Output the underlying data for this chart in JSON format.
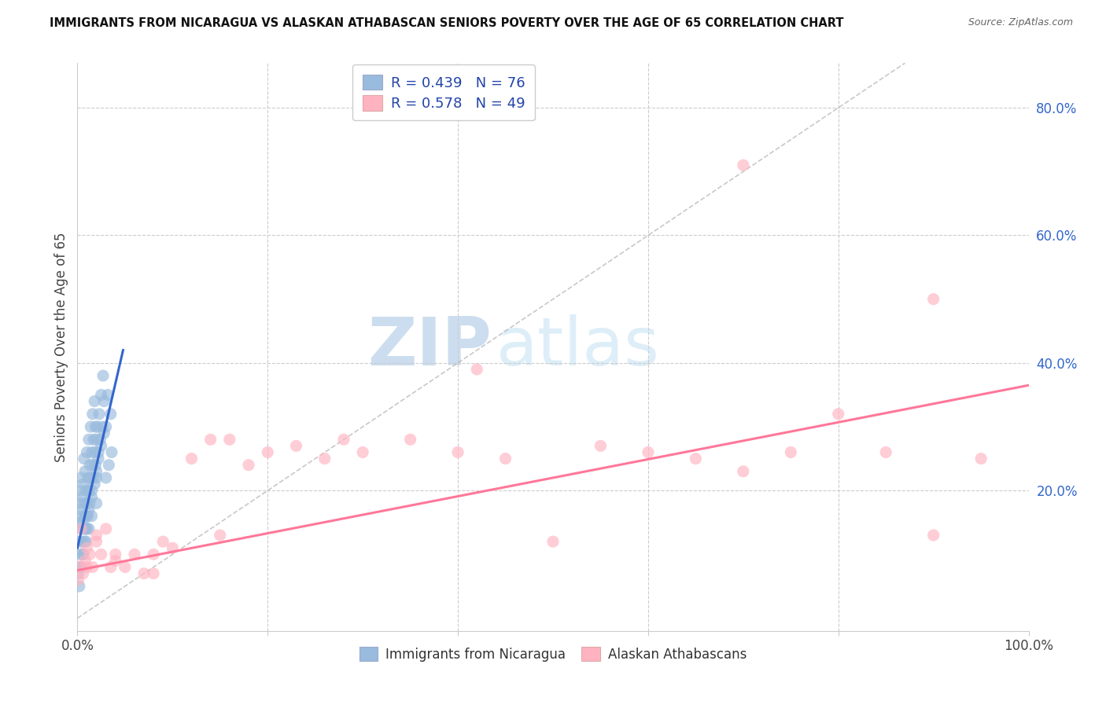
{
  "title": "IMMIGRANTS FROM NICARAGUA VS ALASKAN ATHABASCAN SENIORS POVERTY OVER THE AGE OF 65 CORRELATION CHART",
  "source": "Source: ZipAtlas.com",
  "ylabel": "Seniors Poverty Over the Age of 65",
  "xlim": [
    0,
    1.0
  ],
  "ylim": [
    -0.02,
    0.87
  ],
  "legend_label1": "R = 0.439   N = 76",
  "legend_label2": "R = 0.578   N = 49",
  "color_blue": "#99BBDD",
  "color_pink": "#FFB3C1",
  "color_blue_line": "#3366CC",
  "color_pink_line": "#FF7799",
  "color_diag": "#BBBBBB",
  "blue_scatter_x": [
    0.001,
    0.002,
    0.002,
    0.003,
    0.003,
    0.004,
    0.004,
    0.005,
    0.005,
    0.006,
    0.006,
    0.007,
    0.007,
    0.008,
    0.008,
    0.009,
    0.009,
    0.01,
    0.01,
    0.011,
    0.011,
    0.012,
    0.012,
    0.013,
    0.013,
    0.014,
    0.014,
    0.015,
    0.015,
    0.016,
    0.016,
    0.017,
    0.017,
    0.018,
    0.018,
    0.019,
    0.019,
    0.02,
    0.02,
    0.021,
    0.022,
    0.023,
    0.024,
    0.025,
    0.026,
    0.027,
    0.028,
    0.03,
    0.032,
    0.035,
    0.001,
    0.002,
    0.003,
    0.004,
    0.005,
    0.006,
    0.007,
    0.008,
    0.009,
    0.01,
    0.012,
    0.015,
    0.018,
    0.02,
    0.022,
    0.025,
    0.028,
    0.03,
    0.033,
    0.036,
    0.003,
    0.006,
    0.009,
    0.012,
    0.015,
    0.02
  ],
  "blue_scatter_y": [
    0.15,
    0.12,
    0.18,
    0.16,
    0.2,
    0.17,
    0.22,
    0.14,
    0.19,
    0.15,
    0.21,
    0.18,
    0.25,
    0.16,
    0.23,
    0.14,
    0.2,
    0.18,
    0.26,
    0.22,
    0.16,
    0.2,
    0.28,
    0.24,
    0.18,
    0.22,
    0.3,
    0.26,
    0.2,
    0.24,
    0.32,
    0.28,
    0.22,
    0.26,
    0.34,
    0.3,
    0.24,
    0.28,
    0.22,
    0.3,
    0.26,
    0.32,
    0.28,
    0.35,
    0.3,
    0.38,
    0.34,
    0.3,
    0.35,
    0.32,
    0.07,
    0.05,
    0.1,
    0.08,
    0.12,
    0.1,
    0.14,
    0.12,
    0.16,
    0.14,
    0.17,
    0.19,
    0.21,
    0.23,
    0.25,
    0.27,
    0.29,
    0.22,
    0.24,
    0.26,
    0.08,
    0.1,
    0.12,
    0.14,
    0.16,
    0.18
  ],
  "pink_scatter_x": [
    0.001,
    0.003,
    0.006,
    0.008,
    0.01,
    0.013,
    0.016,
    0.02,
    0.025,
    0.03,
    0.035,
    0.04,
    0.05,
    0.06,
    0.07,
    0.08,
    0.09,
    0.1,
    0.12,
    0.14,
    0.16,
    0.18,
    0.2,
    0.23,
    0.26,
    0.3,
    0.35,
    0.4,
    0.45,
    0.5,
    0.55,
    0.6,
    0.65,
    0.7,
    0.75,
    0.8,
    0.85,
    0.9,
    0.95,
    0.004,
    0.01,
    0.02,
    0.04,
    0.08,
    0.15,
    0.28,
    0.42,
    0.7,
    0.9
  ],
  "pink_scatter_y": [
    0.06,
    0.08,
    0.07,
    0.09,
    0.11,
    0.1,
    0.08,
    0.12,
    0.1,
    0.14,
    0.08,
    0.1,
    0.08,
    0.1,
    0.07,
    0.1,
    0.12,
    0.11,
    0.25,
    0.28,
    0.28,
    0.24,
    0.26,
    0.27,
    0.25,
    0.26,
    0.28,
    0.26,
    0.25,
    0.12,
    0.27,
    0.26,
    0.25,
    0.23,
    0.26,
    0.32,
    0.26,
    0.13,
    0.25,
    0.14,
    0.08,
    0.13,
    0.09,
    0.07,
    0.13,
    0.28,
    0.39,
    0.71,
    0.5
  ],
  "blue_line_x": [
    0.0,
    0.048
  ],
  "blue_line_y": [
    0.11,
    0.42
  ],
  "pink_line_x": [
    0.0,
    1.0
  ],
  "pink_line_y": [
    0.075,
    0.365
  ],
  "diag_line_x": [
    0.0,
    0.87
  ],
  "diag_line_y": [
    0.0,
    0.87
  ]
}
